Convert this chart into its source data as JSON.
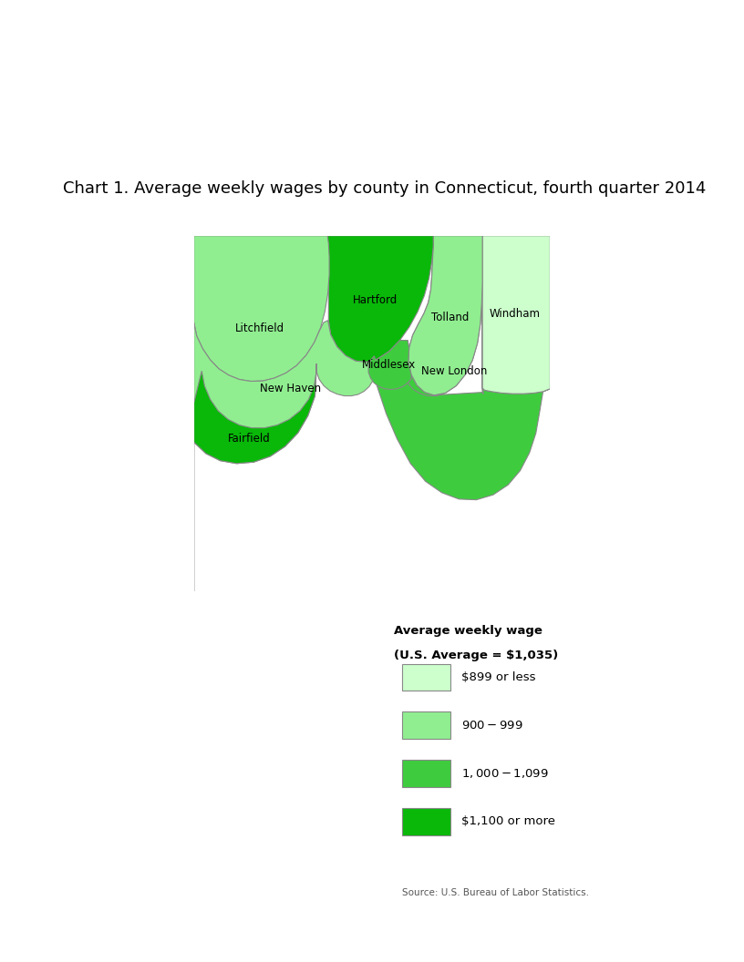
{
  "title": "Chart 1. Average weekly wages by county in Connecticut, fourth quarter 2014",
  "title_fontsize": 13,
  "legend_title_line1": "Average weekly wage",
  "legend_title_line2": "(U.S. Average = $1,035)",
  "legend_labels": [
    "$899 or less",
    "$900-$999",
    "$1,000-$1,099",
    "$1,100 or more"
  ],
  "legend_colors": [
    "#ccffcc",
    "#90ee90",
    "#3ecc3e",
    "#09b809"
  ],
  "source_text": "Source: U.S. Bureau of Labor Statistics.",
  "county_colors": {
    "Fairfield": "#09b809",
    "Litchfield": "#90ee90",
    "Hartford": "#09b809",
    "Tolland": "#90ee90",
    "Windham": "#ccffcc",
    "New Haven": "#90ee90",
    "Middlesex": "#3ecc3e",
    "New London": "#3ecc3e"
  },
  "bg_color": "#ffffff"
}
